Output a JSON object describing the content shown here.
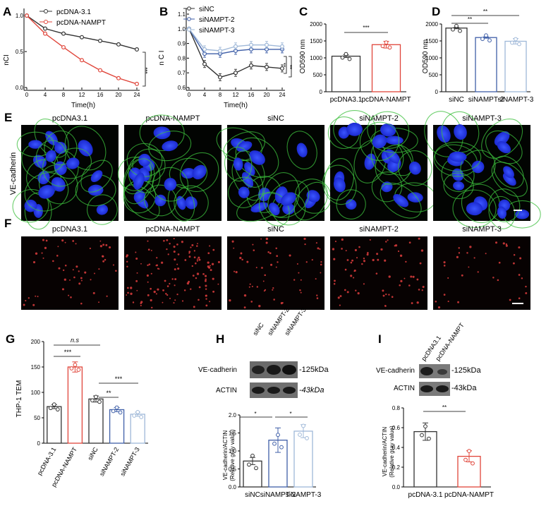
{
  "panels": {
    "A": {
      "letter": "A",
      "ylabel": "nCI",
      "xlabel": "Time(h)",
      "xticks": [
        "0",
        "4",
        "8",
        "12",
        "16",
        "20",
        "24"
      ],
      "yticks": [
        "0.0",
        "0.5",
        "1.0"
      ],
      "sig": "***"
    },
    "B": {
      "letter": "B",
      "ylabel": "n C I",
      "xlabel": "Time(h)",
      "xticks": [
        "0",
        "4",
        "8",
        "12",
        "16",
        "20",
        "24"
      ],
      "yticks": [
        "0.6",
        "0.7",
        "0.8",
        "0.9",
        "1.0",
        "1.1"
      ],
      "sig1": "**",
      "sig2": "**"
    },
    "C": {
      "letter": "C",
      "ylabel": "OD590 nm",
      "yticks": [
        "0",
        "500",
        "1000",
        "1500",
        "2000"
      ],
      "sig": "***"
    },
    "D": {
      "letter": "D",
      "ylabel": "OD590 nm",
      "yticks": [
        "0",
        "500",
        "1000",
        "1500",
        "2000"
      ],
      "sig1": "**",
      "sig2": "**"
    },
    "E": {
      "letter": "E",
      "side_label": "VE-cadherin"
    },
    "F": {
      "letter": "F"
    },
    "G": {
      "letter": "G",
      "ylabel": "THP-1 TEM",
      "yticks": [
        "0",
        "50",
        "100",
        "150",
        "200"
      ],
      "sig_ns": "n.s",
      "sig3a": "***",
      "sig2": "**",
      "sig3b": "***"
    },
    "H": {
      "letter": "H",
      "blot_labels": [
        "VE-cadherin",
        "ACTIN"
      ],
      "sizes": [
        "-125kDa",
        "-43kDa"
      ],
      "lanes": [
        "siNC",
        "siNAMPT-2",
        "siNAMPT-3"
      ],
      "ylabel1": "VE-cadherin/ACTIN",
      "ylabel2": "(Relative gray value)",
      "yticks": [
        "0.0",
        "0.5",
        "1.0",
        "1.5",
        "2.0"
      ],
      "sig1": "*",
      "sig2": "*"
    },
    "I": {
      "letter": "I",
      "blot_labels": [
        "VE-cadherin",
        "ACTIN"
      ],
      "sizes": [
        "-125kDa",
        "-43kDa"
      ],
      "lanes": [
        "pcDNA3.1",
        "pcDNA-NAMPT"
      ],
      "ylabel1": "VE-cadherin/ACTIN",
      "ylabel2": "(Relative gray value)",
      "yticks": [
        "0.0",
        "0.2",
        "0.4",
        "0.6",
        "0.8"
      ],
      "sig": "**"
    }
  },
  "image_columns": [
    "pcDNA3.1",
    "pcDNA-NAMPT",
    "siNC",
    "siNAMPT-2",
    "siNAMPT-3"
  ],
  "colors": {
    "black": "#333333",
    "red": "#e0453a",
    "blue": "#3f5fa8",
    "lightblue": "#9fb8d8",
    "green": "#3cbf3c",
    "nuclei": "#2a3de8"
  },
  "chart_data": [
    {
      "panel": "A",
      "type": "line",
      "x": [
        0,
        4,
        8,
        12,
        16,
        20,
        24
      ],
      "ylim": [
        0,
        1.1
      ],
      "xlim": [
        0,
        24
      ],
      "series": [
        {
          "name": "pcDNA-3.1",
          "values": [
            1.0,
            0.82,
            0.75,
            0.7,
            0.65,
            0.6,
            0.53
          ]
        },
        {
          "name": "pcDNA-NAMPT",
          "values": [
            1.0,
            0.75,
            0.56,
            0.38,
            0.24,
            0.13,
            0.05
          ]
        }
      ]
    },
    {
      "panel": "B",
      "type": "line",
      "x": [
        0,
        4,
        8,
        12,
        16,
        20,
        24
      ],
      "ylim": [
        0.6,
        1.1
      ],
      "xlim": [
        0,
        24
      ],
      "series": [
        {
          "name": "siNC",
          "values": [
            1.0,
            0.76,
            0.67,
            0.7,
            0.75,
            0.74,
            0.73
          ]
        },
        {
          "name": "siNAMPT-2",
          "values": [
            1.0,
            0.83,
            0.83,
            0.85,
            0.86,
            0.86,
            0.86
          ]
        },
        {
          "name": "siNAMPT-3",
          "values": [
            1.0,
            0.86,
            0.85,
            0.88,
            0.89,
            0.89,
            0.88
          ]
        }
      ]
    },
    {
      "panel": "C",
      "type": "bar",
      "categories": [
        "pcDNA3.1",
        "pcDNA-NAMPT"
      ],
      "values": [
        1050,
        1390
      ],
      "ylim": [
        0,
        2000
      ]
    },
    {
      "panel": "D",
      "type": "bar",
      "categories": [
        "siNC",
        "siNAMPT-2",
        "siNAMPT-3"
      ],
      "values": [
        1880,
        1600,
        1490
      ],
      "ylim": [
        0,
        2000
      ]
    },
    {
      "panel": "G",
      "type": "bar",
      "categories": [
        "pcDNA-3.1",
        "pcDNA-NAMPT",
        "siNC",
        "siNAMPT-2",
        "siNAMPT-3"
      ],
      "values": [
        72,
        150,
        87,
        66,
        57
      ],
      "ylim": [
        0,
        200
      ]
    },
    {
      "panel": "H",
      "type": "bar",
      "categories": [
        "siNC",
        "siNAMPT-2",
        "siNAMPT-3"
      ],
      "values": [
        0.72,
        1.3,
        1.55
      ],
      "ylim": [
        0,
        2.0
      ]
    },
    {
      "panel": "I",
      "type": "bar",
      "categories": [
        "pcDNA-3.1",
        "pcDNA-NAMPT"
      ],
      "values": [
        0.56,
        0.31
      ],
      "ylim": [
        0,
        0.8
      ]
    }
  ]
}
